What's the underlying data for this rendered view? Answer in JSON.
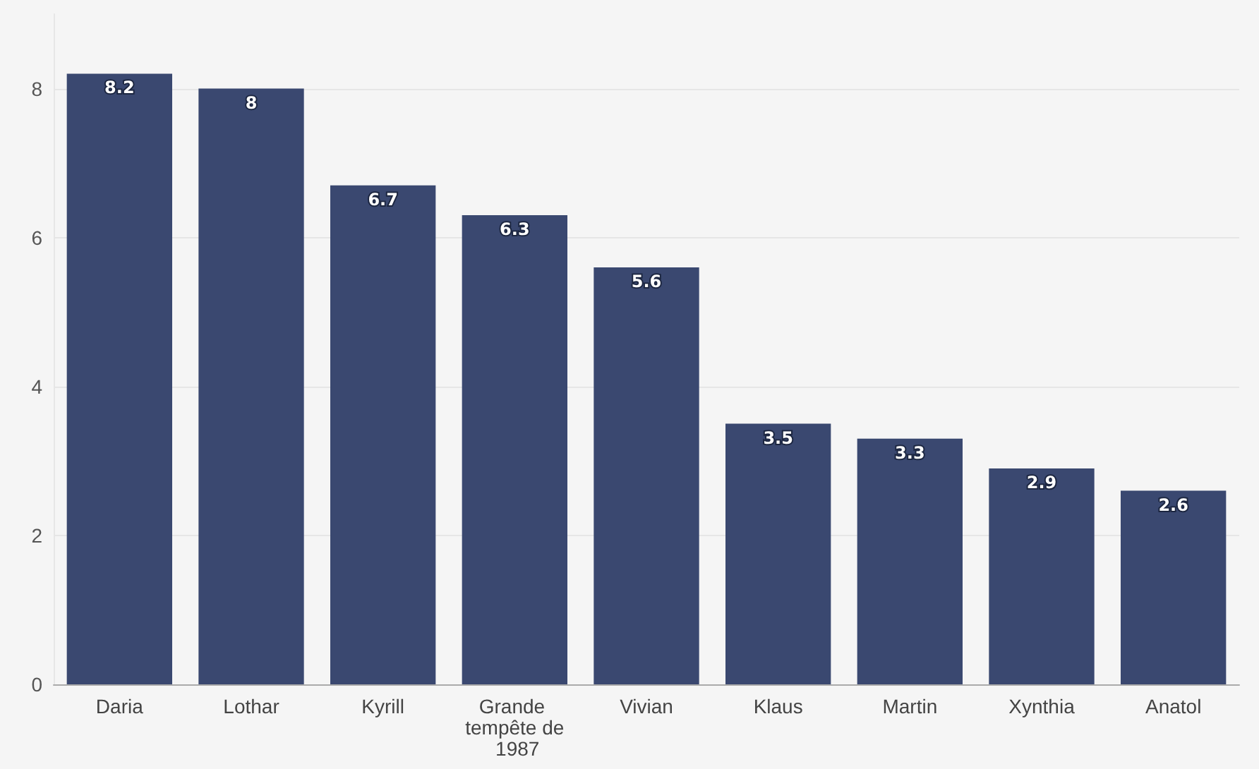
{
  "chart_data": {
    "type": "bar",
    "categories": [
      "Daria",
      "Lothar",
      "Kyrill",
      "Grande tempête de 1987",
      "Vivian",
      "Klaus",
      "Martin",
      "Xynthia",
      "Anatol"
    ],
    "values": [
      8.2,
      8,
      6.7,
      6.3,
      5.6,
      3.5,
      3.3,
      2.9,
      2.6
    ],
    "color": "#3a4870",
    "ylim": [
      0,
      9
    ],
    "yticks": [
      0,
      2,
      4,
      6,
      8
    ],
    "grid": "y",
    "data_labels": true
  }
}
